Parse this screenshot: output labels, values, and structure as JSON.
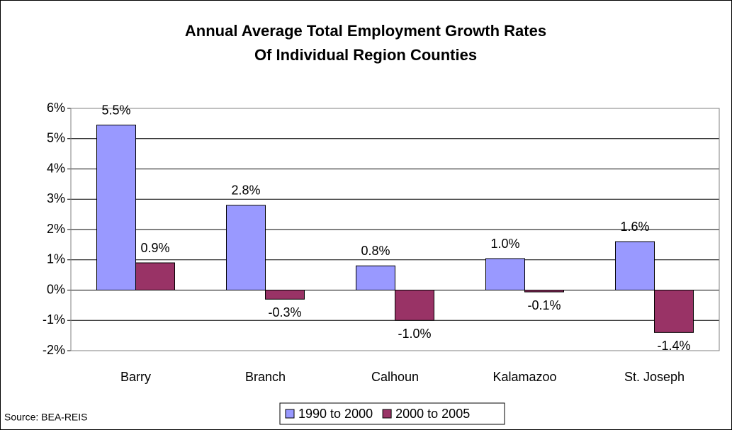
{
  "chart_data": {
    "type": "bar",
    "title": [
      "Annual Average Total Employment Growth Rates",
      "Of Individual Region Counties"
    ],
    "categories": [
      "Barry",
      "Branch",
      "Calhoun",
      "Kalamazoo",
      "St. Joseph"
    ],
    "series": [
      {
        "name": "1990 to 2000",
        "color": "#9999ff",
        "values": [
          5.45,
          2.8,
          0.8,
          1.04,
          1.6
        ],
        "value_labels": [
          "5.5%",
          "2.8%",
          "0.8%",
          "1.0%",
          "1.6%"
        ]
      },
      {
        "name": "2000 to 2005",
        "color": "#993366",
        "values": [
          0.9,
          -0.3,
          -1.0,
          -0.06,
          -1.4
        ],
        "value_labels": [
          "0.9%",
          "-0.3%",
          "-1.0%",
          "-0.1%",
          "-1.4%"
        ]
      }
    ],
    "ylim": [
      -2,
      6
    ],
    "yticks": [
      {
        "value": -2,
        "label": "-2%"
      },
      {
        "value": -1,
        "label": "-1%"
      },
      {
        "value": 0,
        "label": "0%"
      },
      {
        "value": 1,
        "label": "1%"
      },
      {
        "value": 2,
        "label": "2%"
      },
      {
        "value": 3,
        "label": "3%"
      },
      {
        "value": 4,
        "label": "4%"
      },
      {
        "value": 5,
        "label": "5%"
      },
      {
        "value": 6,
        "label": "6%"
      }
    ],
    "grid": true,
    "legend": "bottom",
    "source": "Source: BEA-REIS"
  }
}
